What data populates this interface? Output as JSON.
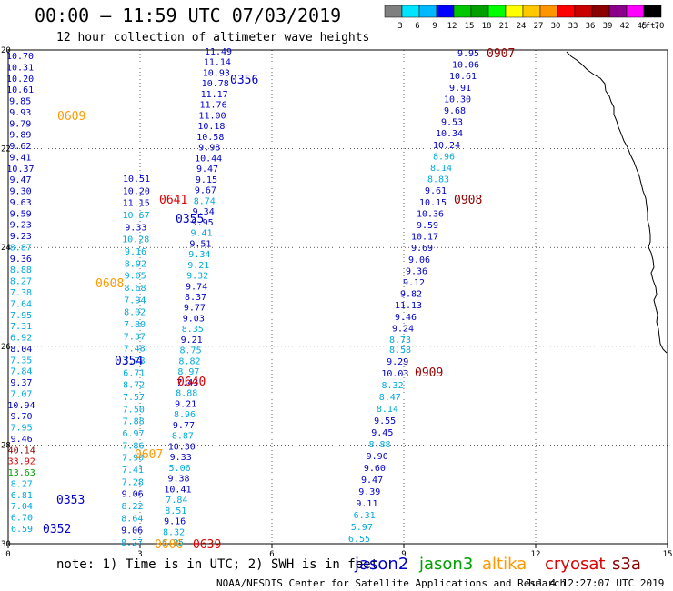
{
  "header": {
    "title": "00:00 – 11:59 UTC 07/03/2019",
    "subtitle": "12 hour collection of altimeter wave heights"
  },
  "scale": {
    "unit": "(ft)",
    "labels": [
      "3",
      "6",
      "9",
      "12",
      "15",
      "18",
      "21",
      "24",
      "27",
      "30",
      "33",
      "36",
      "39",
      "42",
      "45",
      "70"
    ],
    "colors": [
      "#7f7f7f",
      "#00e5ff",
      "#00b8ff",
      "#0000ff",
      "#00c800",
      "#00a000",
      "#00ff00",
      "#ffff00",
      "#ffc800",
      "#ff9600",
      "#ff0000",
      "#c80000",
      "#8b0000",
      "#8b008b",
      "#ff00ff",
      "#000000"
    ]
  },
  "axes": {
    "x_ticks": [
      "0",
      "3",
      "6",
      "9",
      "12",
      "15"
    ],
    "y_ticks": [
      "20",
      "22",
      "24",
      "26",
      "28",
      "30"
    ]
  },
  "colors": {
    "jason2": "#0000cc",
    "cyan": "#00aadd",
    "jason3": "#00a000",
    "altika": "#ff9900",
    "cryosat": "#dd0000",
    "s3a": "#8b0000",
    "maroon": "#990000"
  },
  "passes": [
    {
      "label": "0356",
      "color": "#0000cc"
    },
    {
      "label": "0355",
      "color": "#0000cc"
    },
    {
      "label": "0641",
      "color": "#dd0000"
    },
    {
      "label": "0608",
      "color": "#ff9900"
    },
    {
      "label": "0354",
      "color": "#0000cc"
    },
    {
      "label": "0640",
      "color": "#dd0000"
    },
    {
      "label": "0607",
      "color": "#ff9900"
    },
    {
      "label": "0353",
      "color": "#0000cc"
    },
    {
      "label": "0352",
      "color": "#0000cc"
    },
    {
      "label": "0606",
      "color": "#ff9900"
    },
    {
      "label": "0639",
      "color": "#dd0000"
    },
    {
      "label": "0609",
      "color": "#ff9900"
    },
    {
      "label": "0907",
      "color": "#990000"
    },
    {
      "label": "0908",
      "color": "#990000"
    },
    {
      "label": "0909",
      "color": "#990000"
    }
  ],
  "track_left": {
    "values": [
      "10.70",
      "10.31",
      "10.20",
      "10.61",
      "9.85",
      "9.93",
      "9.79",
      "9.89",
      "9.62",
      "9.41",
      "10.37",
      "9.47",
      "9.30",
      "9.63",
      "9.59",
      "9.23",
      "9.23",
      "8.87",
      "9.36",
      "8.88",
      "8.27",
      "7.38",
      "7.64",
      "7.95",
      "7.31",
      "6.92",
      "8.04",
      "7.35",
      "7.84",
      "9.37",
      "7.07",
      "10.94",
      "9.70",
      "7.95",
      "9.46",
      "40.14",
      "33.92",
      "13.63",
      "8.27",
      "6.81",
      "7.04",
      "6.70",
      "6.59"
    ],
    "colors": [
      "b",
      "b",
      "b",
      "b",
      "b",
      "b",
      "b",
      "b",
      "b",
      "b",
      "b",
      "b",
      "b",
      "b",
      "b",
      "b",
      "b",
      "c",
      "b",
      "c",
      "c",
      "c",
      "c",
      "c",
      "c",
      "c",
      "b",
      "c",
      "c",
      "b",
      "c",
      "b",
      "b",
      "c",
      "b",
      "m",
      "r",
      "g",
      "c",
      "c",
      "c",
      "c",
      "c"
    ]
  },
  "track_center_left": {
    "values": [
      "10.51",
      "10.20",
      "11.15",
      "10.67",
      "9.33",
      "10.28",
      "9.16",
      "8.92",
      "9.05",
      "8.68",
      "7.94",
      "8.02",
      "7.80",
      "7.37",
      "7.48",
      "7.78",
      "6.71",
      "8.72",
      "7.57",
      "7.50",
      "7.88",
      "6.97",
      "7.86",
      "7.90",
      "7.41",
      "7.28",
      "9.06",
      "8.22",
      "8.64",
      "9.06",
      "8.27"
    ],
    "colors": [
      "b",
      "b",
      "b",
      "c",
      "b",
      "c",
      "c",
      "c",
      "c",
      "c",
      "c",
      "c",
      "c",
      "c",
      "c",
      "c",
      "c",
      "c",
      "c",
      "c",
      "c",
      "c",
      "c",
      "c",
      "c",
      "c",
      "b",
      "c",
      "c",
      "b",
      "c"
    ]
  },
  "track_center_right": {
    "values": [
      "11.49",
      "11.14",
      "10.93",
      "10.78",
      "11.17",
      "11.76",
      "11.00",
      "10.18",
      "10.58",
      "9.98",
      "10.44",
      "9.47",
      "9.15",
      "9.67",
      "8.74",
      "9.34",
      "9.95",
      "9.41",
      "9.51",
      "9.34",
      "9.21",
      "9.32",
      "9.74",
      "8.37",
      "9.77",
      "9.03",
      "8.35",
      "9.21",
      "8.75",
      "8.82",
      "8.97",
      "7.43",
      "8.88",
      "9.21",
      "8.96",
      "9.77",
      "8.87",
      "10.30",
      "9.33",
      "5.06",
      "9.38",
      "10.41",
      "7.84",
      "8.51",
      "9.16",
      "8.32",
      "6.85"
    ],
    "colors": [
      "b",
      "b",
      "b",
      "b",
      "b",
      "b",
      "b",
      "b",
      "b",
      "b",
      "b",
      "b",
      "b",
      "b",
      "c",
      "b",
      "b",
      "c",
      "b",
      "c",
      "c",
      "c",
      "b",
      "b",
      "b",
      "b",
      "c",
      "b",
      "c",
      "c",
      "c",
      "b",
      "c",
      "b",
      "c",
      "b",
      "c",
      "b",
      "b",
      "c",
      "b",
      "b",
      "c",
      "c",
      "b",
      "c",
      "c"
    ]
  },
  "track_right_lower": {
    "values": [
      "8.58",
      "9.29",
      "10.03",
      "8.32",
      "8.47",
      "8.14",
      "9.55",
      "9.45",
      "8.88",
      "9.90",
      "9.60",
      "9.47",
      "9.39",
      "9.11",
      "6.31",
      "5.97",
      "6.55"
    ],
    "colors": [
      "c",
      "b",
      "b",
      "c",
      "c",
      "c",
      "b",
      "b",
      "c",
      "b",
      "b",
      "b",
      "b",
      "b",
      "c",
      "c",
      "c"
    ]
  },
  "track_right": {
    "values": [
      "9.95",
      "10.06",
      "10.61",
      "9.91",
      "10.30",
      "9.68",
      "9.53",
      "10.34",
      "10.24",
      "8.96",
      "8.14",
      "8.83",
      "9.61",
      "10.15",
      "10.36",
      "9.59",
      "10.17",
      "9.69",
      "9.06",
      "9.36",
      "9.12",
      "9.82",
      "11.13",
      "9.46",
      "9.24",
      "8.73"
    ],
    "colors": [
      "b",
      "b",
      "b",
      "b",
      "b",
      "b",
      "b",
      "b",
      "b",
      "c",
      "c",
      "c",
      "b",
      "b",
      "b",
      "b",
      "b",
      "b",
      "b",
      "b",
      "b",
      "b",
      "b",
      "b",
      "b",
      "c"
    ]
  },
  "footer": {
    "note": "note: 1) Time is in UTC; 2) SWH is in feet",
    "satellites": [
      {
        "name": "jason2",
        "color": "#0000cc"
      },
      {
        "name": "jason3",
        "color": "#00a000"
      },
      {
        "name": "altika",
        "color": "#ff9900"
      },
      {
        "name": "cryosat",
        "color": "#dd0000"
      },
      {
        "name": "s3a",
        "color": "#8b0000"
      }
    ],
    "credit": "NOAA/NESDIS Center for Satellite Applications and Research",
    "timestamp": "Jul  4 12:27:07 UTC 2019"
  }
}
